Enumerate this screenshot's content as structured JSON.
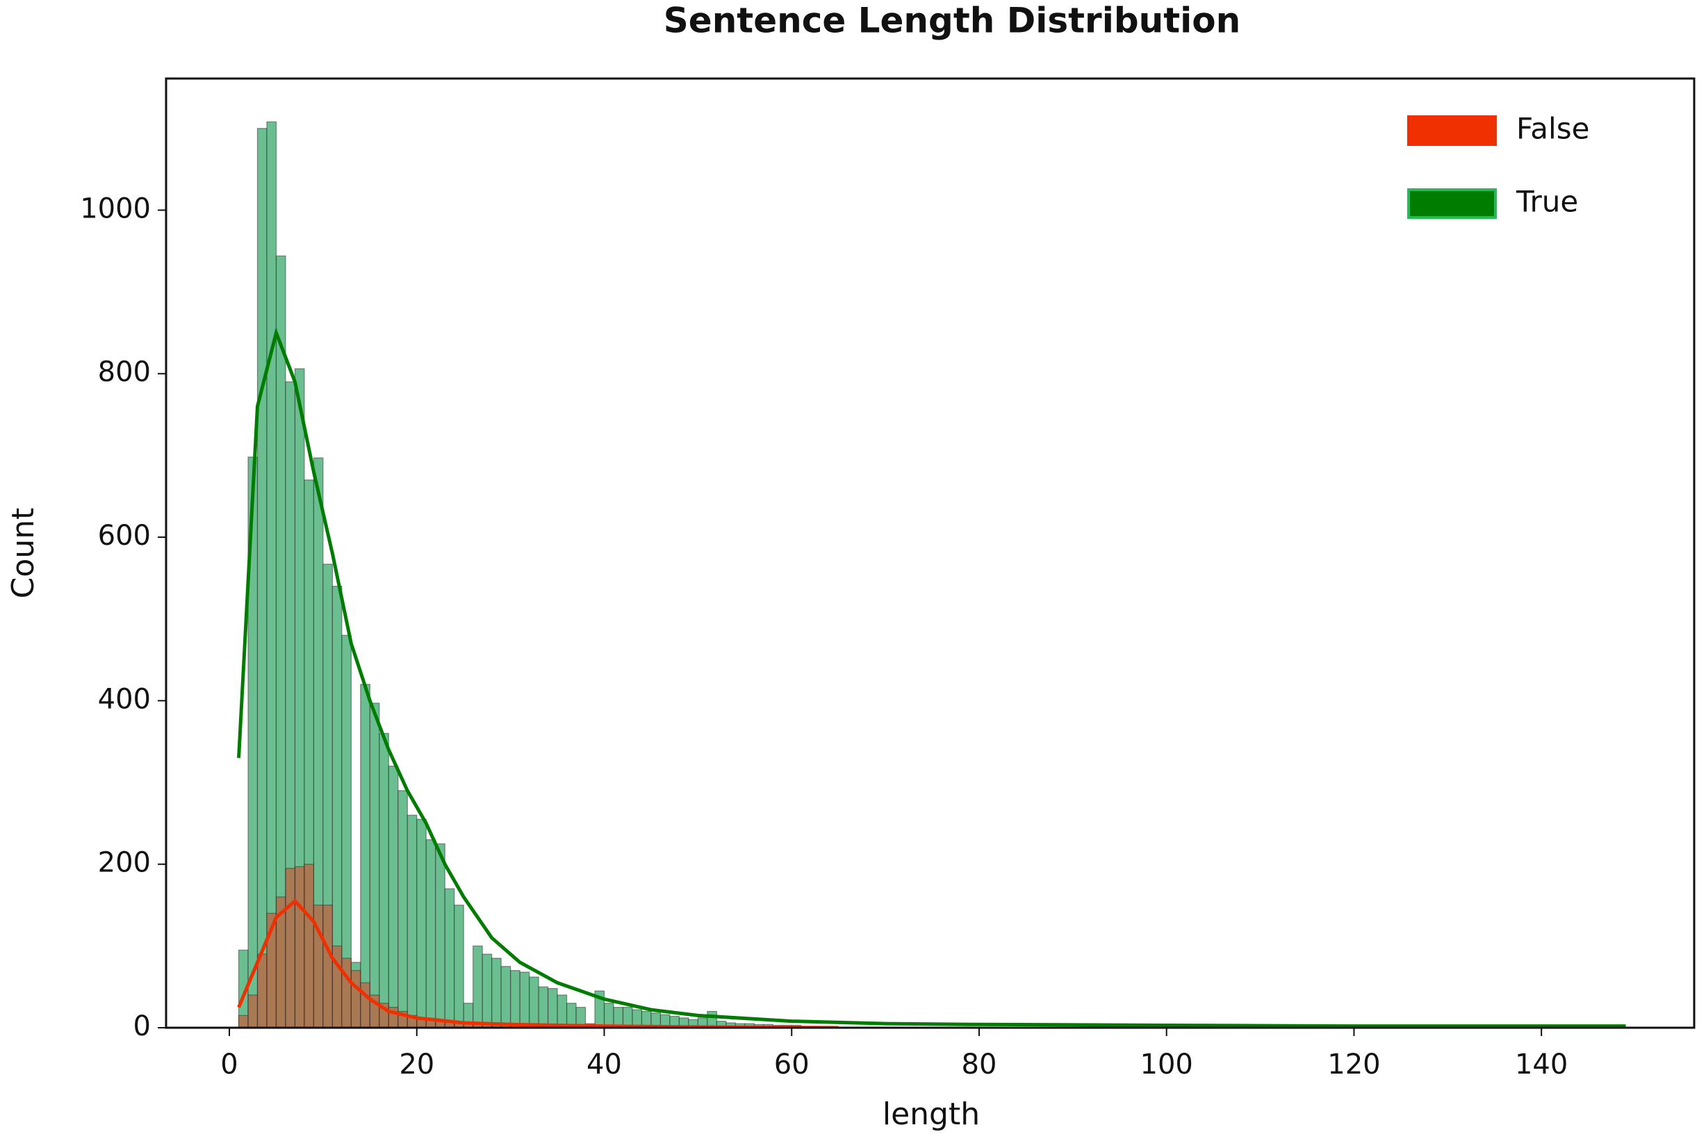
{
  "chart_data": {
    "type": "histogram",
    "title": "Sentence Length Distribution",
    "xlabel": "length",
    "ylabel": "Count",
    "bins": [
      1,
      2,
      3,
      4,
      5,
      6,
      7,
      8,
      9,
      10,
      11,
      12,
      13,
      14,
      15,
      16,
      17,
      18,
      19,
      20,
      21,
      22,
      23,
      24,
      25,
      26,
      27,
      28,
      29,
      30,
      31,
      32,
      33,
      34,
      35,
      36,
      37,
      38,
      39,
      40,
      41,
      42,
      43,
      44,
      45,
      46,
      47,
      48,
      49,
      50,
      51,
      52,
      53,
      54,
      55,
      56,
      57,
      58,
      59,
      60,
      61
    ],
    "series": [
      {
        "name": "True",
        "color": "#007d00",
        "bar_color": "#2ca25f",
        "edge_color": "#22bb55",
        "values": [
          95,
          698,
          1100,
          1108,
          944,
          790,
          806,
          670,
          697,
          567,
          540,
          480,
          80,
          420,
          397,
          360,
          320,
          290,
          260,
          255,
          230,
          225,
          170,
          150,
          30,
          100,
          90,
          85,
          75,
          70,
          68,
          62,
          50,
          48,
          40,
          30,
          25,
          5,
          45,
          30,
          25,
          25,
          22,
          20,
          18,
          16,
          14,
          12,
          10,
          12,
          20,
          8,
          6,
          5,
          5,
          4,
          4,
          3,
          3,
          3
        ],
        "kde_x": [
          1,
          3,
          5,
          7,
          9,
          11,
          13,
          15,
          17,
          19,
          21,
          23,
          25,
          28,
          31,
          35,
          40,
          45,
          50,
          60,
          70,
          80,
          100,
          120,
          149
        ],
        "kde_values": [
          330,
          760,
          850,
          790,
          680,
          580,
          470,
          400,
          340,
          290,
          250,
          200,
          160,
          110,
          80,
          55,
          35,
          22,
          15,
          8,
          5,
          4,
          3,
          2,
          2
        ]
      },
      {
        "name": "False",
        "color": "#f03000",
        "bar_color": "#e8331a",
        "edge_color": "#f03000",
        "values": [
          15,
          40,
          90,
          140,
          160,
          195,
          197,
          200,
          150,
          150,
          100,
          85,
          70,
          55,
          40,
          30,
          25,
          20,
          15,
          12,
          10,
          8,
          7,
          6,
          5,
          4,
          4,
          3,
          3,
          3,
          2,
          2,
          2,
          2,
          1,
          1,
          1,
          1,
          1,
          1,
          0,
          0,
          0,
          0,
          0,
          0,
          0,
          0,
          0,
          0,
          0,
          0,
          0,
          0,
          0,
          0,
          0,
          0,
          0,
          0
        ],
        "kde_x": [
          1,
          3,
          5,
          7,
          9,
          11,
          13,
          15,
          17,
          20,
          25,
          30,
          40,
          50,
          65
        ],
        "kde_values": [
          25,
          80,
          135,
          155,
          130,
          85,
          55,
          35,
          20,
          12,
          6,
          4,
          2,
          1,
          0
        ]
      }
    ],
    "legend_order": [
      1,
      0
    ],
    "legend": "upper right",
    "xlim": [
      -6.75,
      156.3
    ],
    "xticks": [
      0,
      20,
      40,
      60,
      80,
      100,
      120,
      140
    ],
    "ylim": [
      0,
      1161
    ],
    "yticks": [
      0,
      200,
      400,
      600,
      800,
      1000
    ]
  }
}
